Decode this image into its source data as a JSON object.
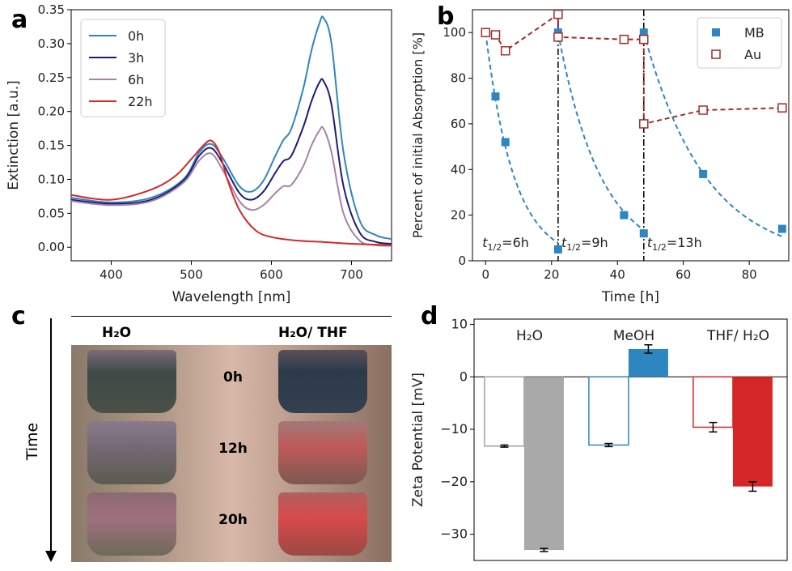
{
  "panel_labels": [
    "a",
    "b",
    "c",
    "d"
  ],
  "chart_data": [
    {
      "panel": "a",
      "type": "line",
      "xlabel": "Wavelength [nm]",
      "ylabel": "Extinction [a.u.]",
      "xlim": [
        350,
        750
      ],
      "ylim": [
        -0.02,
        0.35
      ],
      "xticks": [
        400,
        500,
        600,
        700
      ],
      "yticks": [
        0.0,
        0.05,
        0.1,
        0.15,
        0.2,
        0.25,
        0.3,
        0.35
      ],
      "legend_position": "top-left",
      "series": [
        {
          "name": "0h",
          "color": "#2e86c1",
          "x": [
            350,
            400,
            450,
            490,
            510,
            525,
            540,
            560,
            575,
            590,
            605,
            615,
            625,
            640,
            650,
            660,
            665,
            675,
            690,
            710,
            730,
            750
          ],
          "y": [
            0.073,
            0.066,
            0.073,
            0.1,
            0.14,
            0.152,
            0.13,
            0.09,
            0.082,
            0.098,
            0.135,
            0.158,
            0.175,
            0.235,
            0.29,
            0.33,
            0.338,
            0.3,
            0.14,
            0.04,
            0.018,
            0.012
          ]
        },
        {
          "name": "3h",
          "color": "#1f1a7a",
          "x": [
            350,
            400,
            450,
            490,
            510,
            525,
            540,
            560,
            575,
            590,
            605,
            615,
            625,
            640,
            650,
            660,
            665,
            675,
            690,
            710,
            730,
            750
          ],
          "y": [
            0.07,
            0.064,
            0.07,
            0.098,
            0.135,
            0.146,
            0.122,
            0.08,
            0.07,
            0.082,
            0.11,
            0.127,
            0.135,
            0.178,
            0.215,
            0.243,
            0.245,
            0.21,
            0.09,
            0.022,
            0.008,
            0.005
          ]
        },
        {
          "name": "6h",
          "color": "#a783a6",
          "x": [
            350,
            400,
            450,
            490,
            510,
            525,
            540,
            560,
            575,
            590,
            605,
            615,
            625,
            640,
            650,
            660,
            665,
            675,
            690,
            710,
            730,
            750
          ],
          "y": [
            0.068,
            0.062,
            0.068,
            0.095,
            0.128,
            0.138,
            0.112,
            0.068,
            0.055,
            0.062,
            0.08,
            0.09,
            0.092,
            0.12,
            0.15,
            0.172,
            0.175,
            0.14,
            0.05,
            0.01,
            0.003,
            0.002
          ]
        },
        {
          "name": "22h",
          "color": "#d62728",
          "x": [
            350,
            400,
            450,
            480,
            500,
            515,
            525,
            535,
            545,
            560,
            580,
            600,
            630,
            660,
            700,
            750
          ],
          "y": [
            0.077,
            0.07,
            0.085,
            0.105,
            0.13,
            0.15,
            0.157,
            0.14,
            0.1,
            0.055,
            0.025,
            0.015,
            0.01,
            0.008,
            0.005,
            0.003
          ]
        }
      ]
    },
    {
      "panel": "b",
      "type": "scatter",
      "xlabel": "Time [h]",
      "ylabel": "Percent of initial Absorption [%]",
      "xlim": [
        -4,
        92
      ],
      "ylim": [
        0,
        110
      ],
      "xticks": [
        0,
        20,
        40,
        60,
        80
      ],
      "yticks": [
        0,
        20,
        40,
        60,
        80,
        100
      ],
      "legend_position": "top-right",
      "vlines": [
        22,
        48
      ],
      "annotations": [
        {
          "base": "t",
          "sub": "1/2",
          "tail": "=6h",
          "x": -1,
          "y": 6
        },
        {
          "base": "t",
          "sub": "1/2",
          "tail": "=9h",
          "x": 23,
          "y": 6
        },
        {
          "base": "t",
          "sub": "1/2",
          "tail": "=13h",
          "x": 49,
          "y": 6
        }
      ],
      "series": [
        {
          "name": "MB",
          "marker": "filled-square",
          "color": "#2e86c1",
          "points": [
            [
              0,
              100
            ],
            [
              3,
              72
            ],
            [
              6,
              52
            ],
            [
              22,
              5
            ],
            [
              22,
              100
            ],
            [
              42,
              20
            ],
            [
              48,
              12
            ],
            [
              48,
              100
            ],
            [
              66,
              38
            ],
            [
              90,
              14
            ]
          ],
          "fits": [
            {
              "x0": 0,
              "x1": 22,
              "half_life": 6
            },
            {
              "x0": 22,
              "x1": 48,
              "half_life": 9
            },
            {
              "x0": 48,
              "x1": 90,
              "half_life": 13
            }
          ]
        },
        {
          "name": "Au",
          "marker": "open-square",
          "color": "#a52a2a",
          "points": [
            [
              0,
              100
            ],
            [
              3,
              99
            ],
            [
              6,
              92
            ],
            [
              22,
              108
            ],
            [
              22,
              98
            ],
            [
              42,
              97
            ],
            [
              48,
              97
            ],
            [
              48,
              60
            ],
            [
              66,
              66
            ],
            [
              90,
              67
            ]
          ]
        }
      ]
    },
    {
      "panel": "d",
      "type": "bar",
      "ylabel": "Zeta Potential [mV]",
      "ylim": [
        -35,
        11
      ],
      "yticks": [
        -30,
        -20,
        -10,
        0,
        10
      ],
      "categories": [
        "H₂O",
        "MeOH",
        "THF/ H₂O"
      ],
      "series": [
        {
          "name": "",
          "style": "outline",
          "values": [
            -13.2,
            -13.0,
            -9.6
          ],
          "errors": [
            0.2,
            0.3,
            0.9
          ],
          "colors": [
            "#a0a0a0",
            "#2e86c1",
            "#d62728"
          ]
        },
        {
          "name": "",
          "style": "filled",
          "values": [
            -33.0,
            5.3,
            -20.9
          ],
          "errors": [
            0.3,
            0.8,
            0.9
          ],
          "colors": [
            "#a9a9a9",
            "#2e86c1",
            "#d62728"
          ]
        }
      ]
    }
  ],
  "photo": {
    "header_left": "H₂O",
    "header_right": "H₂O/ THF",
    "rows": [
      "0h",
      "12h",
      "20h"
    ],
    "axis_label": "Time"
  }
}
